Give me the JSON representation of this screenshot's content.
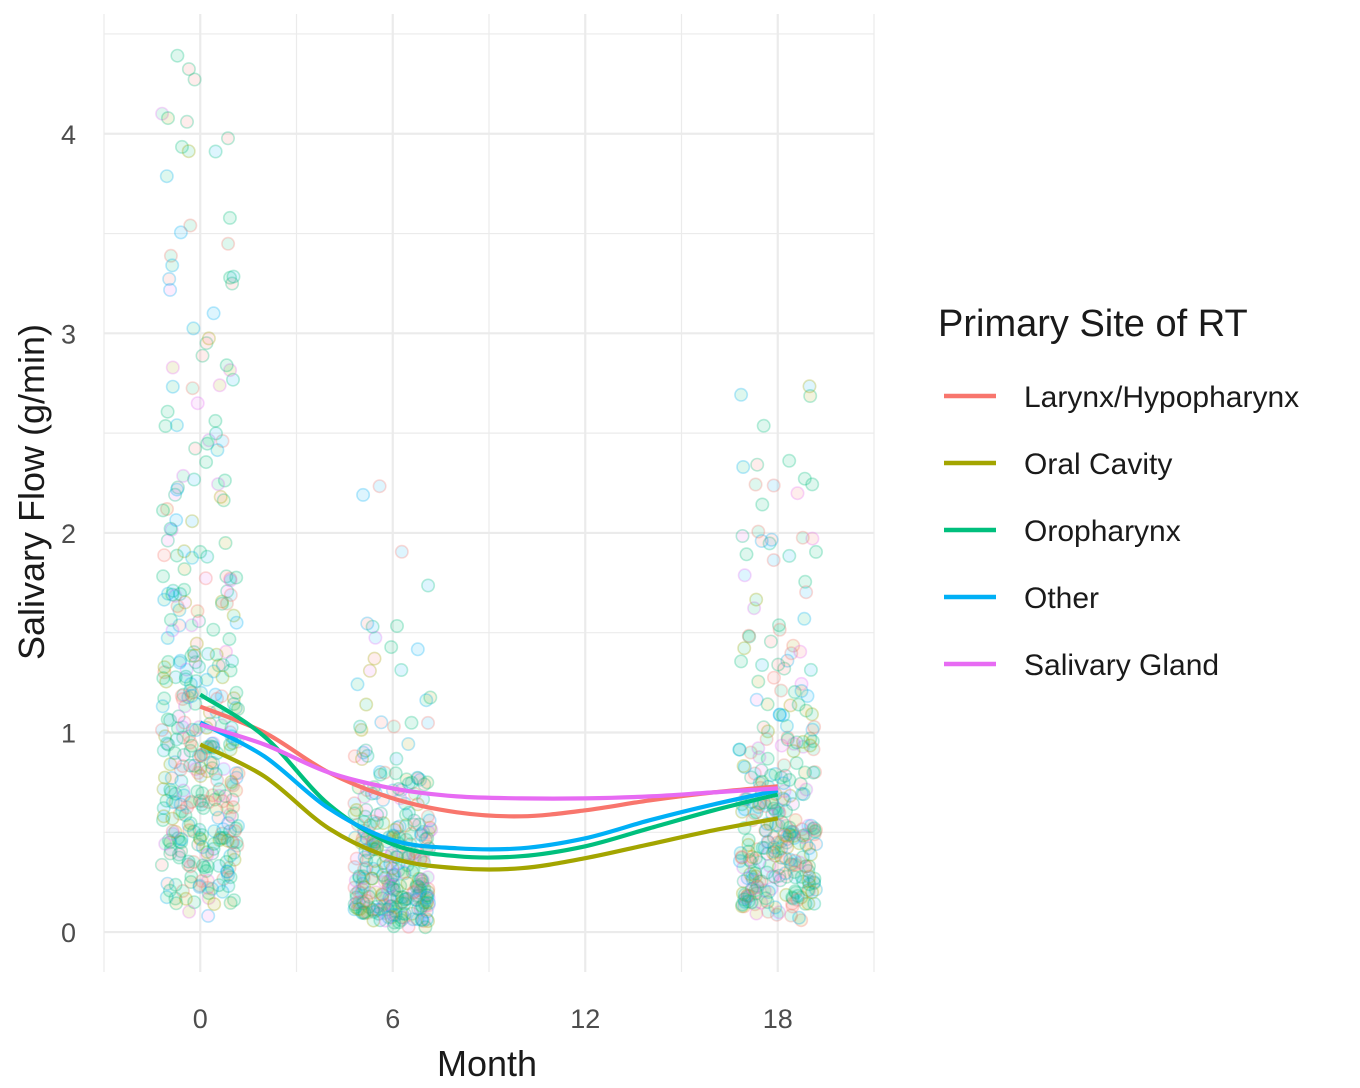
{
  "chart_data": {
    "type": "scatter",
    "xlabel": "Month",
    "ylabel": "Salivary Flow (g/min)",
    "x_ticks": [
      0,
      6,
      12,
      18
    ],
    "y_ticks": [
      0,
      1,
      2,
      3,
      4
    ],
    "xlim": [
      -3,
      21
    ],
    "ylim": [
      -0.2,
      4.6
    ],
    "grid": true,
    "legend": {
      "title": "Primary Site of RT",
      "placement": "right",
      "entries": [
        "Larynx/Hypopharynx",
        "Oral Cavity",
        "Oropharynx",
        "Other",
        "Salivary Gland"
      ]
    },
    "colors": {
      "Larynx/Hypopharynx": "#F8766D",
      "Oral Cavity": "#A3A500",
      "Oropharynx": "#00BF7D",
      "Other": "#00B0F6",
      "Salivary Gland": "#E76BF3"
    },
    "jitter_width_months": 2.4,
    "point_clusters": [
      {
        "month": 0,
        "count": 360,
        "median": 0.95,
        "max": 4.45
      },
      {
        "month": 6,
        "count": 300,
        "median": 0.3,
        "max": 2.25
      },
      {
        "month": 18,
        "count": 300,
        "median": 0.55,
        "max": 2.85
      }
    ],
    "series": [
      {
        "name": "Larynx/Hypopharynx",
        "x": [
          0,
          2,
          4,
          6,
          8,
          10,
          12,
          14,
          16,
          18
        ],
        "values": [
          1.13,
          1.0,
          0.8,
          0.67,
          0.6,
          0.58,
          0.61,
          0.66,
          0.7,
          0.73
        ]
      },
      {
        "name": "Oral Cavity",
        "x": [
          0,
          2,
          4,
          6,
          8,
          10,
          12,
          14,
          16,
          18
        ],
        "values": [
          0.94,
          0.78,
          0.52,
          0.37,
          0.32,
          0.32,
          0.37,
          0.44,
          0.51,
          0.57
        ]
      },
      {
        "name": "Oropharynx",
        "x": [
          0,
          2,
          4,
          6,
          8,
          10,
          12,
          14,
          16,
          18
        ],
        "values": [
          1.19,
          0.98,
          0.64,
          0.44,
          0.38,
          0.38,
          0.43,
          0.52,
          0.61,
          0.69
        ]
      },
      {
        "name": "Other",
        "x": [
          0,
          2,
          4,
          6,
          8,
          10,
          12,
          14,
          16,
          18
        ],
        "values": [
          1.05,
          0.88,
          0.62,
          0.46,
          0.42,
          0.42,
          0.47,
          0.56,
          0.64,
          0.71
        ]
      },
      {
        "name": "Salivary Gland",
        "x": [
          0,
          2,
          4,
          6,
          8,
          10,
          12,
          14,
          16,
          18
        ],
        "values": [
          1.04,
          0.94,
          0.8,
          0.72,
          0.68,
          0.67,
          0.67,
          0.68,
          0.7,
          0.72
        ]
      }
    ]
  }
}
